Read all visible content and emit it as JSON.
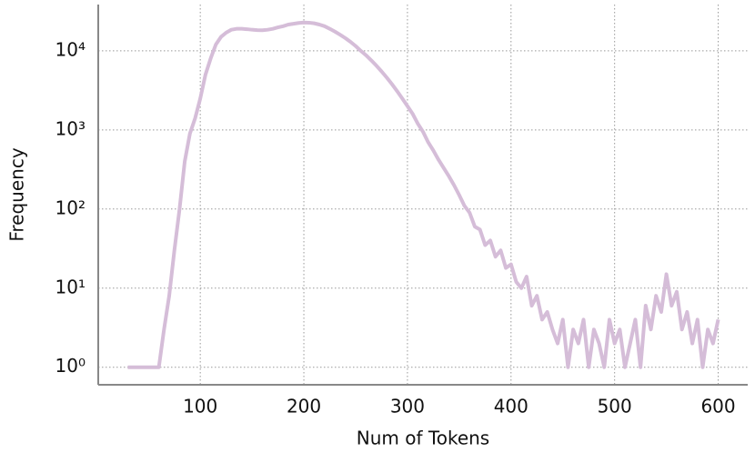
{
  "chart_data": {
    "type": "line",
    "xlabel": "Num of Tokens",
    "ylabel": "Frequency",
    "x": [
      30,
      35,
      40,
      45,
      50,
      55,
      60,
      65,
      70,
      75,
      80,
      85,
      90,
      95,
      100,
      105,
      110,
      115,
      120,
      125,
      130,
      135,
      140,
      145,
      150,
      155,
      160,
      165,
      170,
      175,
      180,
      185,
      190,
      195,
      200,
      205,
      210,
      215,
      220,
      225,
      230,
      235,
      240,
      245,
      250,
      255,
      260,
      265,
      270,
      275,
      280,
      285,
      290,
      295,
      300,
      305,
      310,
      315,
      320,
      325,
      330,
      335,
      340,
      345,
      350,
      355,
      360,
      365,
      370,
      375,
      380,
      385,
      390,
      395,
      400,
      405,
      410,
      415,
      420,
      425,
      430,
      435,
      440,
      445,
      450,
      455,
      460,
      465,
      470,
      475,
      480,
      485,
      490,
      495,
      500,
      505,
      510,
      515,
      520,
      525,
      530,
      535,
      540,
      545,
      550,
      555,
      560,
      565,
      570,
      575,
      580,
      585,
      590,
      595,
      600
    ],
    "values": [
      1,
      1,
      1,
      1,
      1,
      1,
      1,
      3,
      8,
      30,
      100,
      400,
      900,
      1400,
      2500,
      5000,
      8000,
      12000,
      15000,
      17000,
      18500,
      19000,
      19000,
      18800,
      18500,
      18300,
      18200,
      18500,
      19000,
      19800,
      20500,
      21500,
      22000,
      22500,
      22800,
      22700,
      22300,
      21500,
      20500,
      19000,
      17500,
      16000,
      14500,
      13000,
      11500,
      10000,
      8800,
      7600,
      6500,
      5500,
      4600,
      3800,
      3100,
      2500,
      2000,
      1600,
      1200,
      950,
      700,
      550,
      420,
      330,
      260,
      200,
      150,
      110,
      90,
      60,
      55,
      35,
      40,
      25,
      30,
      18,
      20,
      12,
      10,
      14,
      6,
      8,
      4,
      5,
      3,
      2,
      4,
      1,
      3,
      2,
      4,
      1,
      3,
      2,
      1,
      4,
      2,
      3,
      1,
      2,
      4,
      1,
      6,
      3,
      8,
      5,
      15,
      6,
      9,
      3,
      5,
      2,
      4,
      1,
      3,
      2,
      4
    ],
    "color": "#d5bdd8",
    "xlim": [
      1.5,
      628.5
    ],
    "xticks": [
      100,
      200,
      300,
      400,
      500,
      600
    ],
    "ylim": [
      0.6,
      38500
    ],
    "ylog": true,
    "yticks": [
      {
        "value": 1,
        "label": "10⁰"
      },
      {
        "value": 10,
        "label": "10¹"
      },
      {
        "value": 100,
        "label": "10²"
      },
      {
        "value": 1000,
        "label": "10³"
      },
      {
        "value": 10000,
        "label": "10⁴"
      }
    ],
    "grid": true
  }
}
